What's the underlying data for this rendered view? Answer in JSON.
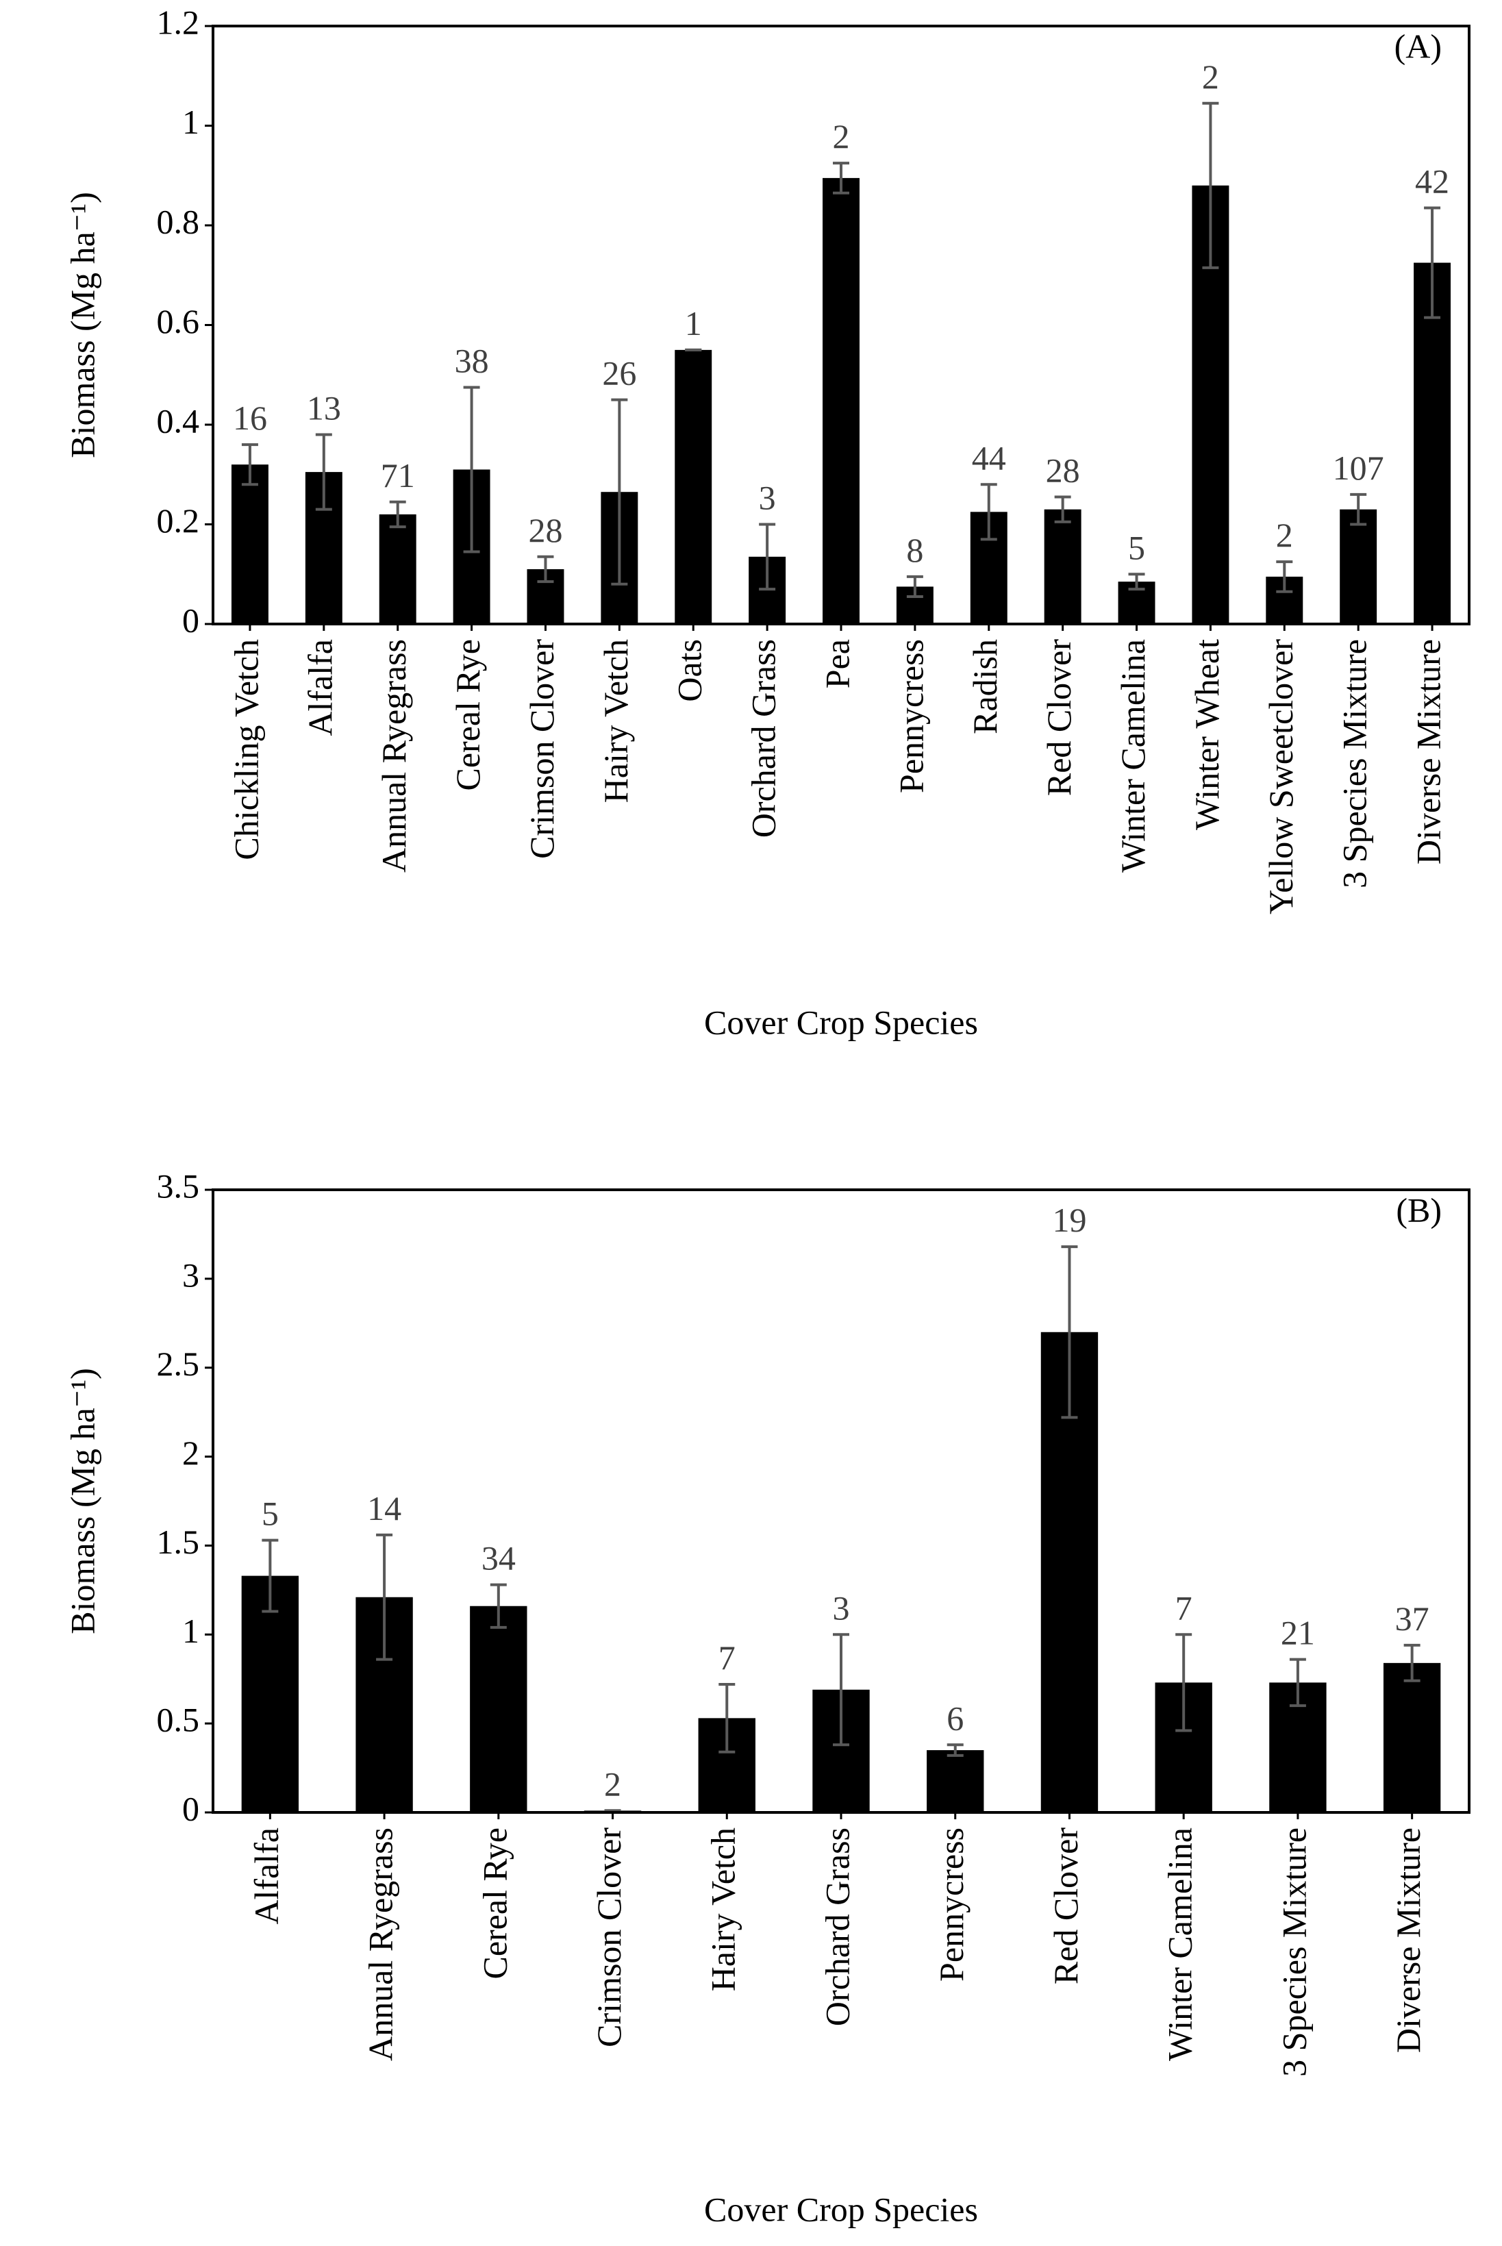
{
  "chart_data": [
    {
      "type": "bar",
      "panel_label": "(A)",
      "xlabel": "Cover Crop Species",
      "ylabel": "Biomass (Mg ha⁻¹)",
      "categories": [
        "Chickling Vetch",
        "Alfalfa",
        "Annual Ryegrass",
        "Cereal Rye",
        "Crimson Clover",
        "Hairy Vetch",
        "Oats",
        "Orchard Grass",
        "Pea",
        "Pennycress",
        "Radish",
        "Red Clover",
        "Winter Camelina",
        "Winter Wheat",
        "Yellow Sweetclover",
        "3 Species Mixture",
        "Diverse Mixture"
      ],
      "values": [
        0.32,
        0.305,
        0.22,
        0.31,
        0.11,
        0.265,
        0.55,
        0.135,
        0.895,
        0.075,
        0.225,
        0.23,
        0.085,
        0.88,
        0.095,
        0.23,
        0.725
      ],
      "errors": [
        0.04,
        0.075,
        0.025,
        0.165,
        0.025,
        0.185,
        0,
        0.065,
        0.03,
        0.02,
        0.055,
        0.025,
        0.015,
        0.165,
        0.03,
        0.03,
        0.11
      ],
      "annotations": [
        "16",
        "13",
        "71",
        "38",
        "28",
        "26",
        "1",
        "3",
        "2",
        "8",
        "44",
        "28",
        "5",
        "2",
        "2",
        "107",
        "42"
      ],
      "color": "#000000",
      "error_color": "#595959",
      "ylim": [
        0,
        1.2
      ],
      "yticks": [
        0,
        0.2,
        0.4,
        0.6,
        0.8,
        1,
        1.2
      ]
    },
    {
      "type": "bar",
      "panel_label": "(B)",
      "xlabel": "Cover Crop Species",
      "ylabel": "Biomass (Mg ha⁻¹)",
      "categories": [
        "Alfalfa",
        "Annual Ryegrass",
        "Cereal Rye",
        "Crimson Clover",
        "Hairy Vetch",
        "Orchard Grass",
        "Pennycress",
        "Red Clover",
        "Winter Camelina",
        "3 Species Mixture",
        "Diverse Mixture"
      ],
      "values": [
        1.33,
        1.21,
        1.16,
        0.01,
        0.53,
        0.69,
        0.35,
        2.7,
        0.73,
        0.73,
        0.84
      ],
      "errors": [
        0.2,
        0.35,
        0.12,
        0,
        0.19,
        0.31,
        0.03,
        0.48,
        0.27,
        0.13,
        0.1
      ],
      "annotations": [
        "5",
        "14",
        "34",
        "2",
        "7",
        "3",
        "6",
        "19",
        "7",
        "21",
        "37"
      ],
      "color": "#000000",
      "error_color": "#595959",
      "ylim": [
        0,
        3.5
      ],
      "yticks": [
        0,
        0.5,
        1,
        1.5,
        2,
        2.5,
        3,
        3.5
      ]
    }
  ]
}
